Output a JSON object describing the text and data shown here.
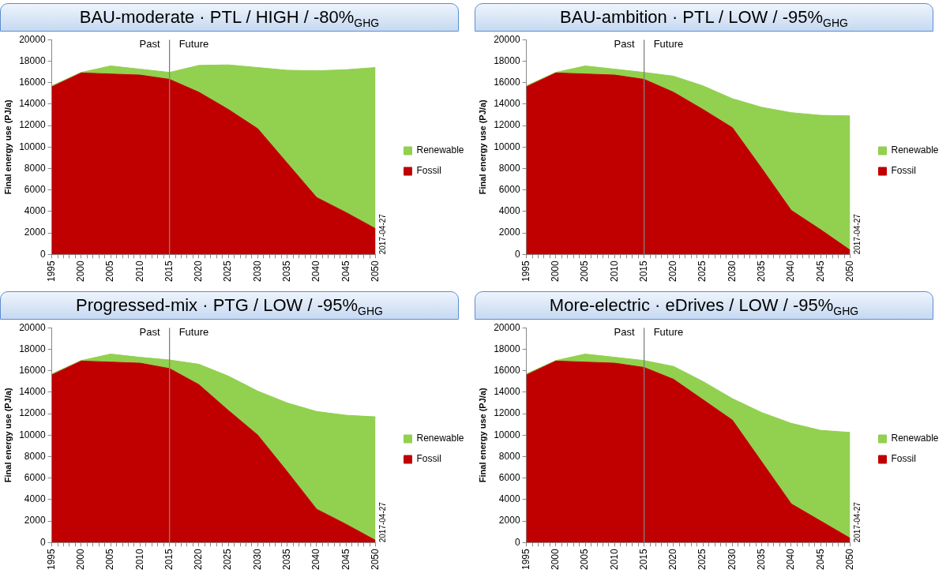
{
  "chart_data": [
    {
      "type": "area",
      "title": "BAU-moderate · PTL / HIGH / -80%$_{GHG}$",
      "ylabel": "Final energy use (PJ/a)",
      "stacked": true,
      "legend": "right",
      "x": [
        1995,
        2000,
        2005,
        2010,
        2015,
        2020,
        2025,
        2030,
        2035,
        2040,
        2045,
        2050
      ],
      "xlim": [
        1995,
        2050
      ],
      "xticks": [
        1995,
        {
          "value": 1996,
          "label": null
        },
        {
          "value": 1997,
          "label": null
        },
        {
          "value": 1998,
          "label": null
        },
        {
          "value": 1999,
          "label": null
        },
        2000,
        {
          "value": 2001,
          "label": null
        },
        {
          "value": 2002,
          "label": null
        },
        {
          "value": 2003,
          "label": null
        },
        {
          "value": 2004,
          "label": null
        },
        2005,
        {
          "value": 2006,
          "label": null
        },
        {
          "value": 2007,
          "label": null
        },
        {
          "value": 2008,
          "label": null
        },
        {
          "value": 2009,
          "label": null
        },
        2010,
        {
          "value": 2011,
          "label": null
        },
        {
          "value": 2012,
          "label": null
        },
        {
          "value": 2013,
          "label": null
        },
        {
          "value": 2014,
          "label": null
        },
        2015,
        {
          "value": 2016,
          "label": null
        },
        {
          "value": 2017,
          "label": null
        },
        {
          "value": 2018,
          "label": null
        },
        {
          "value": 2019,
          "label": null
        },
        2020,
        {
          "value": 2021,
          "label": null
        },
        {
          "value": 2022,
          "label": null
        },
        {
          "value": 2023,
          "label": null
        },
        {
          "value": 2024,
          "label": null
        },
        2025,
        {
          "value": 2026,
          "label": null
        },
        {
          "value": 2027,
          "label": null
        },
        {
          "value": 2028,
          "label": null
        },
        {
          "value": 2029,
          "label": null
        },
        2030,
        {
          "value": 2031,
          "label": null
        },
        {
          "value": 2032,
          "label": null
        },
        {
          "value": 2033,
          "label": null
        },
        {
          "value": 2034,
          "label": null
        },
        2035,
        {
          "value": 2036,
          "label": null
        },
        {
          "value": 2037,
          "label": null
        },
        {
          "value": 2038,
          "label": null
        },
        {
          "value": 2039,
          "label": null
        },
        2040,
        {
          "value": 2041,
          "label": null
        },
        {
          "value": 2042,
          "label": null
        },
        {
          "value": 2043,
          "label": null
        },
        {
          "value": 2044,
          "label": null
        },
        2045,
        {
          "value": 2046,
          "label": null
        },
        {
          "value": 2047,
          "label": null
        },
        {
          "value": 2048,
          "label": null
        },
        {
          "value": 2049,
          "label": null
        },
        2050
      ],
      "ylim": [
        0,
        20000
      ],
      "yticks": [
        0,
        2000,
        4000,
        6000,
        8000,
        10000,
        12000,
        14000,
        16000,
        18000,
        20000
      ],
      "series": [
        {
          "name": "Fossil",
          "color": "#c00000",
          "values": [
            15600,
            16900,
            16800,
            16700,
            16300,
            15100,
            13500,
            11700,
            8500,
            5300,
            3900,
            2400
          ]
        },
        {
          "name": "Renewable",
          "color": "#92d050",
          "values": [
            100,
            50,
            750,
            550,
            650,
            2500,
            4150,
            5700,
            8650,
            11800,
            13300,
            15000
          ]
        }
      ],
      "ref_lines": [
        {
          "axis": "x",
          "value": 2015,
          "color": "#808080"
        }
      ],
      "annotations": [
        "Past",
        "Future",
        "2017-04-27"
      ]
    },
    {
      "type": "area",
      "title": "BAU-ambition · PTL / LOW / -95%$_{GHG}$",
      "ylabel": "Final energy use (PJ/a)",
      "stacked": true,
      "legend": "right",
      "x": [
        1995,
        2000,
        2005,
        2010,
        2015,
        2020,
        2025,
        2030,
        2035,
        2040,
        2045,
        2050
      ],
      "xlim": [
        1995,
        2050
      ],
      "xticks": [
        1995,
        {
          "value": 1996,
          "label": null
        },
        {
          "value": 1997,
          "label": null
        },
        {
          "value": 1998,
          "label": null
        },
        {
          "value": 1999,
          "label": null
        },
        2000,
        {
          "value": 2001,
          "label": null
        },
        {
          "value": 2002,
          "label": null
        },
        {
          "value": 2003,
          "label": null
        },
        {
          "value": 2004,
          "label": null
        },
        2005,
        {
          "value": 2006,
          "label": null
        },
        {
          "value": 2007,
          "label": null
        },
        {
          "value": 2008,
          "label": null
        },
        {
          "value": 2009,
          "label": null
        },
        2010,
        {
          "value": 2011,
          "label": null
        },
        {
          "value": 2012,
          "label": null
        },
        {
          "value": 2013,
          "label": null
        },
        {
          "value": 2014,
          "label": null
        },
        2015,
        {
          "value": 2016,
          "label": null
        },
        {
          "value": 2017,
          "label": null
        },
        {
          "value": 2018,
          "label": null
        },
        {
          "value": 2019,
          "label": null
        },
        2020,
        {
          "value": 2021,
          "label": null
        },
        {
          "value": 2022,
          "label": null
        },
        {
          "value": 2023,
          "label": null
        },
        {
          "value": 2024,
          "label": null
        },
        2025,
        {
          "value": 2026,
          "label": null
        },
        {
          "value": 2027,
          "label": null
        },
        {
          "value": 2028,
          "label": null
        },
        {
          "value": 2029,
          "label": null
        },
        2030,
        {
          "value": 2031,
          "label": null
        },
        {
          "value": 2032,
          "label": null
        },
        {
          "value": 2033,
          "label": null
        },
        {
          "value": 2034,
          "label": null
        },
        2035,
        {
          "value": 2036,
          "label": null
        },
        {
          "value": 2037,
          "label": null
        },
        {
          "value": 2038,
          "label": null
        },
        {
          "value": 2039,
          "label": null
        },
        2040,
        {
          "value": 2041,
          "label": null
        },
        {
          "value": 2042,
          "label": null
        },
        {
          "value": 2043,
          "label": null
        },
        {
          "value": 2044,
          "label": null
        },
        2045,
        {
          "value": 2046,
          "label": null
        },
        {
          "value": 2047,
          "label": null
        },
        {
          "value": 2048,
          "label": null
        },
        {
          "value": 2049,
          "label": null
        },
        2050
      ],
      "ylim": [
        0,
        20000
      ],
      "yticks": [
        0,
        2000,
        4000,
        6000,
        8000,
        10000,
        12000,
        14000,
        16000,
        18000,
        20000
      ],
      "series": [
        {
          "name": "Fossil",
          "color": "#c00000",
          "values": [
            15600,
            16900,
            16800,
            16700,
            16300,
            15100,
            13500,
            11800,
            8000,
            4100,
            2300,
            400
          ]
        },
        {
          "name": "Renewable",
          "color": "#92d050",
          "values": [
            100,
            50,
            750,
            550,
            650,
            1500,
            2200,
            2700,
            5700,
            9100,
            10650,
            12500
          ]
        }
      ],
      "ref_lines": [
        {
          "axis": "x",
          "value": 2015,
          "color": "#808080"
        }
      ],
      "annotations": [
        "Past",
        "Future",
        "2017-04-27"
      ]
    },
    {
      "type": "area",
      "title": "Progressed-mix · PTG / LOW / -95%$_{GHG}$",
      "ylabel": "Final energy use (PJ/a)",
      "stacked": true,
      "legend": "right",
      "x": [
        1995,
        2000,
        2005,
        2010,
        2015,
        2020,
        2025,
        2030,
        2035,
        2040,
        2045,
        2050
      ],
      "xlim": [
        1995,
        2050
      ],
      "xticks": [
        1995,
        {
          "value": 1996,
          "label": null
        },
        {
          "value": 1997,
          "label": null
        },
        {
          "value": 1998,
          "label": null
        },
        {
          "value": 1999,
          "label": null
        },
        2000,
        {
          "value": 2001,
          "label": null
        },
        {
          "value": 2002,
          "label": null
        },
        {
          "value": 2003,
          "label": null
        },
        {
          "value": 2004,
          "label": null
        },
        2005,
        {
          "value": 2006,
          "label": null
        },
        {
          "value": 2007,
          "label": null
        },
        {
          "value": 2008,
          "label": null
        },
        {
          "value": 2009,
          "label": null
        },
        2010,
        {
          "value": 2011,
          "label": null
        },
        {
          "value": 2012,
          "label": null
        },
        {
          "value": 2013,
          "label": null
        },
        {
          "value": 2014,
          "label": null
        },
        2015,
        {
          "value": 2016,
          "label": null
        },
        {
          "value": 2017,
          "label": null
        },
        {
          "value": 2018,
          "label": null
        },
        {
          "value": 2019,
          "label": null
        },
        2020,
        {
          "value": 2021,
          "label": null
        },
        {
          "value": 2022,
          "label": null
        },
        {
          "value": 2023,
          "label": null
        },
        {
          "value": 2024,
          "label": null
        },
        2025,
        {
          "value": 2026,
          "label": null
        },
        {
          "value": 2027,
          "label": null
        },
        {
          "value": 2028,
          "label": null
        },
        {
          "value": 2029,
          "label": null
        },
        2030,
        {
          "value": 2031,
          "label": null
        },
        {
          "value": 2032,
          "label": null
        },
        {
          "value": 2033,
          "label": null
        },
        {
          "value": 2034,
          "label": null
        },
        2035,
        {
          "value": 2036,
          "label": null
        },
        {
          "value": 2037,
          "label": null
        },
        {
          "value": 2038,
          "label": null
        },
        {
          "value": 2039,
          "label": null
        },
        2040,
        {
          "value": 2041,
          "label": null
        },
        {
          "value": 2042,
          "label": null
        },
        {
          "value": 2043,
          "label": null
        },
        {
          "value": 2044,
          "label": null
        },
        2045,
        {
          "value": 2046,
          "label": null
        },
        {
          "value": 2047,
          "label": null
        },
        {
          "value": 2048,
          "label": null
        },
        {
          "value": 2049,
          "label": null
        },
        2050
      ],
      "ylim": [
        0,
        20000
      ],
      "yticks": [
        0,
        2000,
        4000,
        6000,
        8000,
        10000,
        12000,
        14000,
        16000,
        18000,
        20000
      ],
      "series": [
        {
          "name": "Fossil",
          "color": "#c00000",
          "values": [
            15600,
            16900,
            16800,
            16700,
            16200,
            14700,
            12300,
            10000,
            6600,
            3100,
            1700,
            200
          ]
        },
        {
          "name": "Renewable",
          "color": "#92d050",
          "values": [
            100,
            50,
            750,
            550,
            800,
            1900,
            3200,
            4100,
            6400,
            9100,
            10150,
            11500
          ]
        }
      ],
      "ref_lines": [
        {
          "axis": "x",
          "value": 2015,
          "color": "#808080"
        }
      ],
      "annotations": [
        "Past",
        "Future",
        "2017-04-27"
      ]
    },
    {
      "type": "area",
      "title": "More-electric · eDrives / LOW / -95%$_{GHG}$",
      "ylabel": "Final energy use (PJ/a)",
      "stacked": true,
      "legend": "right",
      "x": [
        1995,
        2000,
        2005,
        2010,
        2015,
        2020,
        2025,
        2030,
        2035,
        2040,
        2045,
        2050
      ],
      "xlim": [
        1995,
        2050
      ],
      "xticks": [
        1995,
        {
          "value": 1996,
          "label": null
        },
        {
          "value": 1997,
          "label": null
        },
        {
          "value": 1998,
          "label": null
        },
        {
          "value": 1999,
          "label": null
        },
        2000,
        {
          "value": 2001,
          "label": null
        },
        {
          "value": 2002,
          "label": null
        },
        {
          "value": 2003,
          "label": null
        },
        {
          "value": 2004,
          "label": null
        },
        2005,
        {
          "value": 2006,
          "label": null
        },
        {
          "value": 2007,
          "label": null
        },
        {
          "value": 2008,
          "label": null
        },
        {
          "value": 2009,
          "label": null
        },
        2010,
        {
          "value": 2011,
          "label": null
        },
        {
          "value": 2012,
          "label": null
        },
        {
          "value": 2013,
          "label": null
        },
        {
          "value": 2014,
          "label": null
        },
        2015,
        {
          "value": 2016,
          "label": null
        },
        {
          "value": 2017,
          "label": null
        },
        {
          "value": 2018,
          "label": null
        },
        {
          "value": 2019,
          "label": null
        },
        2020,
        {
          "value": 2021,
          "label": null
        },
        {
          "value": 2022,
          "label": null
        },
        {
          "value": 2023,
          "label": null
        },
        {
          "value": 2024,
          "label": null
        },
        2025,
        {
          "value": 2026,
          "label": null
        },
        {
          "value": 2027,
          "label": null
        },
        {
          "value": 2028,
          "label": null
        },
        {
          "value": 2029,
          "label": null
        },
        2030,
        {
          "value": 2031,
          "label": null
        },
        {
          "value": 2032,
          "label": null
        },
        {
          "value": 2033,
          "label": null
        },
        {
          "value": 2034,
          "label": null
        },
        2035,
        {
          "value": 2036,
          "label": null
        },
        {
          "value": 2037,
          "label": null
        },
        {
          "value": 2038,
          "label": null
        },
        {
          "value": 2039,
          "label": null
        },
        2040,
        {
          "value": 2041,
          "label": null
        },
        {
          "value": 2042,
          "label": null
        },
        {
          "value": 2043,
          "label": null
        },
        {
          "value": 2044,
          "label": null
        },
        2045,
        {
          "value": 2046,
          "label": null
        },
        {
          "value": 2047,
          "label": null
        },
        {
          "value": 2048,
          "label": null
        },
        {
          "value": 2049,
          "label": null
        },
        2050
      ],
      "ylim": [
        0,
        20000
      ],
      "yticks": [
        0,
        2000,
        4000,
        6000,
        8000,
        10000,
        12000,
        14000,
        16000,
        18000,
        20000
      ],
      "series": [
        {
          "name": "Fossil",
          "color": "#c00000",
          "values": [
            15600,
            16900,
            16800,
            16700,
            16300,
            15200,
            13300,
            11400,
            7500,
            3600,
            2000,
            400
          ]
        },
        {
          "name": "Renewable",
          "color": "#92d050",
          "values": [
            100,
            50,
            750,
            550,
            650,
            1200,
            1700,
            2000,
            4600,
            7500,
            8450,
            9850
          ]
        }
      ],
      "ref_lines": [
        {
          "axis": "x",
          "value": 2015,
          "color": "#808080"
        }
      ],
      "annotations": [
        "Past",
        "Future",
        "2017-04-27"
      ]
    }
  ]
}
